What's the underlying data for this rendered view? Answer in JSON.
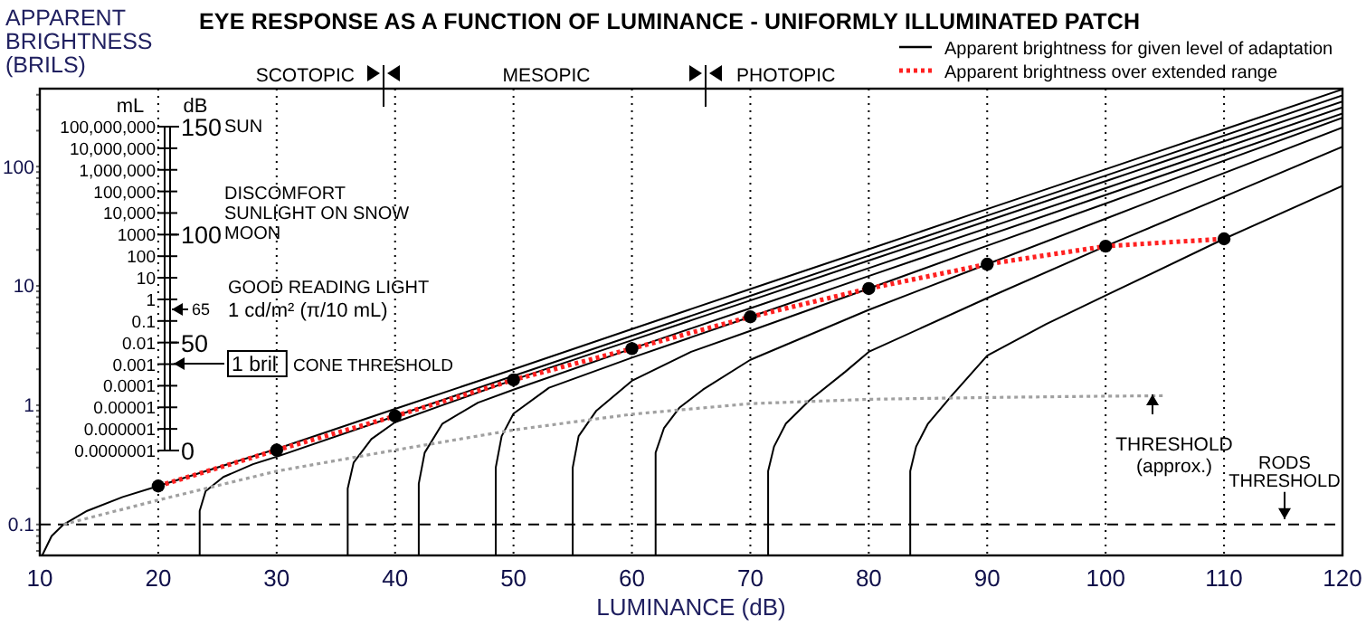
{
  "chart_data": {
    "type": "line",
    "title": "EYE RESPONSE AS A FUNCTION OF LUMINANCE - UNIFORMLY ILLUMINATED PATCH",
    "xlabel": "LUMINANCE (dB)",
    "ylabel": "APPARENT BRIGHTNESS (BRILS)",
    "y2label": "dB",
    "xlim": [
      10,
      120
    ],
    "xticks": [
      10,
      20,
      30,
      40,
      50,
      60,
      70,
      80,
      90,
      100,
      110,
      120
    ],
    "ylim": [
      0.055,
      450
    ],
    "yticks": [
      {
        "value": 0.06,
        "label": null
      },
      {
        "value": 0.07,
        "label": null
      },
      {
        "value": 0.08,
        "label": null
      },
      {
        "value": 0.09,
        "label": null
      },
      0.1,
      {
        "value": 0.2,
        "label": null
      },
      {
        "value": 0.3,
        "label": null
      },
      {
        "value": 0.4,
        "label": null
      },
      {
        "value": 0.5,
        "label": null
      },
      {
        "value": 0.6,
        "label": null
      },
      {
        "value": 0.7,
        "label": null
      },
      {
        "value": 0.8,
        "label": null
      },
      {
        "value": 0.9,
        "label": null
      },
      1,
      {
        "value": 2,
        "label": null
      },
      {
        "value": 3,
        "label": null
      },
      {
        "value": 4,
        "label": null
      },
      {
        "value": 5,
        "label": null
      },
      {
        "value": 6,
        "label": null
      },
      {
        "value": 7,
        "label": null
      },
      {
        "value": 8,
        "label": null
      },
      {
        "value": 9,
        "label": null
      },
      10,
      {
        "value": 20,
        "label": null
      },
      {
        "value": 30,
        "label": null
      },
      {
        "value": 40,
        "label": null
      },
      {
        "value": 50,
        "label": null
      },
      {
        "value": 60,
        "label": null
      },
      {
        "value": 70,
        "label": null
      },
      {
        "value": 80,
        "label": null
      },
      {
        "value": 90,
        "label": null
      },
      100,
      {
        "value": 200,
        "label": null
      },
      {
        "value": 300,
        "label": null
      },
      {
        "value": 400,
        "label": null
      }
    ],
    "y2lim": [
      0,
      150
    ],
    "y2ticks": [
      0,
      50,
      100,
      150
    ],
    "log": "y",
    "grid": "x",
    "legend": "top right",
    "series": [
      {
        "name": "Apparent brightness for given level of adaptation",
        "color": "#000000",
        "line_style": "solid",
        "marker": "none",
        "x": [
          10.2,
          11,
          12,
          14,
          17,
          20,
          30,
          40,
          50,
          60,
          70,
          80,
          90,
          100,
          110,
          120
        ],
        "values": [
          0.055,
          0.08,
          0.1,
          0.13,
          0.17,
          0.21,
          0.43,
          0.93,
          2.0,
          4.35,
          9.4,
          20.3,
          44,
          95,
          205,
          444
        ]
      },
      {
        "color": "#000000",
        "line_style": "solid",
        "marker": "none",
        "x": [
          23.5,
          23.5,
          24,
          25.5,
          28,
          30,
          40,
          50,
          60,
          70,
          80,
          90,
          100,
          120
        ],
        "values": [
          0.055,
          0.13,
          0.19,
          0.25,
          0.32,
          0.37,
          0.81,
          1.76,
          3.81,
          8.26,
          17.9,
          38.8,
          84,
          395
        ]
      },
      {
        "color": "#000000",
        "line_style": "solid",
        "marker": "none",
        "x": [
          36,
          36,
          36.5,
          38,
          40,
          44,
          50,
          60,
          70,
          80,
          90,
          100,
          120
        ],
        "values": [
          0.055,
          0.2,
          0.33,
          0.52,
          0.72,
          1.0,
          1.63,
          3.5,
          7.55,
          16.3,
          35,
          75.5,
          351
        ]
      },
      {
        "color": "#000000",
        "line_style": "solid",
        "marker": "none",
        "x": [
          42,
          42,
          42.5,
          44,
          47,
          50,
          60,
          70,
          80,
          90,
          100,
          120
        ],
        "values": [
          0.055,
          0.22,
          0.4,
          0.7,
          1.05,
          1.35,
          2.98,
          6.5,
          14.1,
          30.5,
          66,
          313
        ]
      },
      {
        "color": "#000000",
        "line_style": "solid",
        "marker": "none",
        "x": [
          48.5,
          48.5,
          49,
          50,
          53,
          60,
          70,
          80,
          90,
          100,
          120
        ],
        "values": [
          0.055,
          0.3,
          0.55,
          0.85,
          1.4,
          2.5,
          5.5,
          12.1,
          26.4,
          57.8,
          279
        ]
      },
      {
        "color": "#000000",
        "line_style": "solid",
        "marker": "none",
        "x": [
          55,
          55,
          55.5,
          57,
          60,
          65,
          70,
          80,
          90,
          100,
          120
        ],
        "values": [
          0.055,
          0.3,
          0.55,
          0.9,
          1.6,
          2.8,
          4.2,
          9.5,
          21.7,
          49,
          256
        ]
      },
      {
        "color": "#000000",
        "line_style": "solid",
        "marker": "none",
        "x": [
          62,
          62,
          62.7,
          64,
          66,
          70,
          80,
          90,
          100,
          120
        ],
        "values": [
          0.055,
          0.4,
          0.64,
          0.95,
          1.35,
          2.4,
          6.3,
          15.2,
          36.6,
          213
        ]
      },
      {
        "color": "#000000",
        "line_style": "solid",
        "marker": "none",
        "x": [
          71.5,
          71.5,
          72,
          73,
          75,
          78,
          80,
          90,
          100,
          110,
          120
        ],
        "values": [
          0.055,
          0.28,
          0.45,
          0.7,
          1.1,
          1.9,
          2.8,
          7.9,
          21.5,
          56,
          147
        ]
      },
      {
        "color": "#000000",
        "line_style": "solid",
        "marker": "none",
        "x": [
          83.5,
          83.5,
          84,
          85,
          87,
          90,
          95,
          100,
          110,
          120
        ],
        "values": [
          0.055,
          0.28,
          0.45,
          0.7,
          1.2,
          2.6,
          4.8,
          8.3,
          24.8,
          69
        ]
      },
      {
        "color": "#a0a0a0",
        "line_style": "dotted",
        "marker": "none",
        "x": [
          12,
          20,
          30,
          40,
          50,
          60,
          70,
          80,
          90,
          100,
          105
        ],
        "values": [
          0.1,
          0.16,
          0.28,
          0.42,
          0.62,
          0.84,
          1.03,
          1.12,
          1.16,
          1.19,
          1.2
        ]
      },
      {
        "name": "Apparent brightness over extended range",
        "color": "#ff2020",
        "line_style": "dotted",
        "marker": "none",
        "x": [
          20,
          30,
          40,
          50,
          60,
          70,
          80,
          90,
          100,
          110
        ],
        "values": [
          0.21,
          0.42,
          0.81,
          1.63,
          2.98,
          5.5,
          9.5,
          15.2,
          21.5,
          24.8
        ]
      },
      {
        "type": "scatter",
        "color": "#000000",
        "marker": "circle",
        "x": [
          20,
          30,
          40,
          50,
          60,
          70,
          80,
          90,
          100,
          110
        ],
        "values": [
          0.21,
          0.42,
          0.81,
          1.63,
          2.98,
          5.5,
          9.5,
          15.2,
          21.5,
          24.8
        ]
      }
    ],
    "ref_lines": [
      {
        "axis": "y",
        "value": 0.1,
        "label": "RODS THRESHOLD",
        "line_style": "dashed",
        "color": "#000000"
      }
    ],
    "annotations": [
      "SCOTOPIC",
      "MESOPIC",
      "PHOTOPIC",
      "THRESHOLD (approx.)",
      "SUN",
      "DISCOMFORT",
      "SUNLIGHT ON SNOW",
      "MOON",
      "GOOD READING LIGHT",
      "1 cd/m² (π/10 mL)",
      "65",
      "1 bril",
      "CONE THRESHOLD",
      "mL",
      "100,000,000",
      "10,000,000",
      "1,000,000",
      "100,000",
      "10,000",
      "1000",
      "100",
      "10",
      "1",
      "0.1",
      "0.01",
      "0.001",
      "0.0001",
      "0.00001",
      "0.000001",
      "0.0000001"
    ]
  }
}
